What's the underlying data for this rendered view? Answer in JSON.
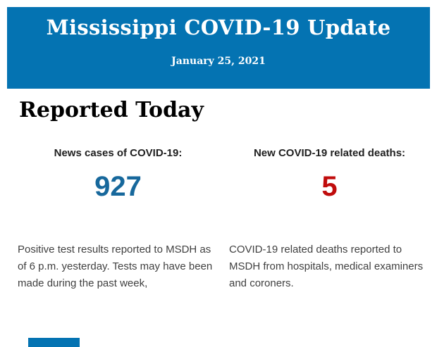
{
  "header": {
    "title": "Mississippi COVID-19 Update",
    "date": "January 25, 2021",
    "background_color": "#0473b2",
    "text_color": "#ffffff"
  },
  "section": {
    "heading": "Reported Today"
  },
  "stats": [
    {
      "label": "News cases of COVID-19:",
      "value": "927",
      "value_color": "#17689c",
      "description": "Positive test results reported to MSDH as of 6 p.m. yesterday. Tests may have been made during the past week,"
    },
    {
      "label": "New COVID-19 related deaths:",
      "value": "5",
      "value_color": "#c00c0c",
      "description": "COVID-19 related deaths reported to MSDH from hospitals, medical examiners and coroners."
    }
  ],
  "footer": {
    "cutoff_element_color": "#0473b2"
  }
}
